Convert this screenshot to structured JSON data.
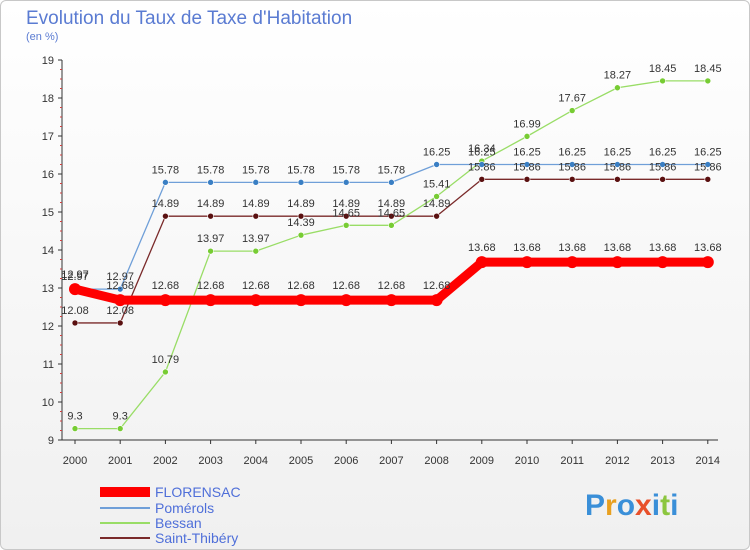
{
  "chart_data": {
    "type": "line",
    "title": "Evolution du Taux de Taxe d'Habitation",
    "ylabel": "(en %)",
    "xlabel": "",
    "ylim": [
      9,
      19
    ],
    "yticks": [
      9,
      10,
      11,
      12,
      13,
      14,
      15,
      16,
      17,
      18,
      19
    ],
    "categories": [
      "2000",
      "2001",
      "2002",
      "2003",
      "2004",
      "2005",
      "2006",
      "2007",
      "2008",
      "2009",
      "2010",
      "2011",
      "2012",
      "2013",
      "2014"
    ],
    "series": [
      {
        "name": "FLORENSAC",
        "color": "#ff0000",
        "marker": "#ff0000",
        "values": [
          12.97,
          12.68,
          12.68,
          12.68,
          12.68,
          12.68,
          12.68,
          12.68,
          12.68,
          13.68,
          13.68,
          13.68,
          13.68,
          13.68,
          13.68
        ],
        "labels": [
          "12.97",
          "12.68",
          "12.68",
          "12.68",
          "12.68",
          "12.68",
          "12.68",
          "12.68",
          "12.68",
          "13.68",
          "13.68",
          "13.68",
          "13.68",
          "13.68",
          "13.68"
        ]
      },
      {
        "name": "Pomérols",
        "color": "#6f9fd8",
        "marker": "#3a7fc4",
        "values": [
          12.97,
          12.97,
          15.78,
          15.78,
          15.78,
          15.78,
          15.78,
          15.78,
          16.25,
          16.25,
          16.25,
          16.25,
          16.25,
          16.25,
          16.25
        ],
        "labels": [
          "12.97",
          "12.97",
          "15.78",
          "15.78",
          "15.78",
          "15.78",
          "15.78",
          "15.78",
          "16.25",
          "16.25",
          "16.25",
          "16.25",
          "16.25",
          "16.25",
          "16.25"
        ]
      },
      {
        "name": "Bessan",
        "color": "#99dd66",
        "marker": "#77cc33",
        "values": [
          9.3,
          9.3,
          10.79,
          13.97,
          13.97,
          14.39,
          14.65,
          14.65,
          15.41,
          16.34,
          16.99,
          17.67,
          18.27,
          18.45,
          18.45
        ],
        "labels": [
          "9.3",
          "9.3",
          "10.79",
          "13.97",
          "13.97",
          "14.39",
          "14.65",
          "14.65",
          "15.41",
          "16.34",
          "16.99",
          "17.67",
          "18.27",
          "18.45",
          "18.45"
        ]
      },
      {
        "name": "Saint-Thibéry",
        "color": "#7a2a2a",
        "marker": "#5a1010",
        "values": [
          12.08,
          12.08,
          14.89,
          14.89,
          14.89,
          14.89,
          14.89,
          14.89,
          14.89,
          15.86,
          15.86,
          15.86,
          15.86,
          15.86,
          15.86
        ],
        "labels": [
          "12.08",
          "12.08",
          "14.89",
          "14.89",
          "14.89",
          "14.89",
          "14.89",
          "14.89",
          "14.89",
          "15.86",
          "15.86",
          "15.86",
          "15.86",
          "15.86",
          "15.86"
        ]
      }
    ],
    "legend_position": "bottom-left"
  },
  "logo": {
    "text": "Proxiti",
    "letters": [
      "P",
      "r",
      "o",
      "x",
      "i",
      "t",
      "i"
    ],
    "colors": [
      "#3a8fd8",
      "#e8a020",
      "#3a8fd8",
      "#e8502a",
      "#3a8fd8",
      "#8cc63f",
      "#3a8fd8"
    ]
  },
  "colors": {
    "title": "#5a7bd2",
    "axis": "#333333",
    "legend_text": "#4f6fd9"
  }
}
